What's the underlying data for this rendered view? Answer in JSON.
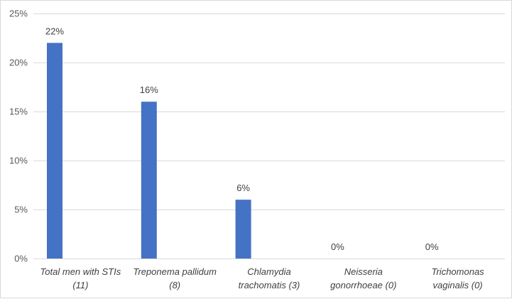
{
  "chart_data": {
    "type": "bar",
    "title": "",
    "xlabel": "",
    "ylabel": "",
    "categories": [
      [
        "Total men with STIs",
        "(11)"
      ],
      [
        "Treponema pallidum",
        "(8)"
      ],
      [
        "Chlamydia",
        "trachomatis (3)"
      ],
      [
        "Neisseria",
        "gonorrhoeae (0)"
      ],
      [
        "Trichomonas",
        "vaginalis (0)"
      ]
    ],
    "values": [
      22,
      16,
      6,
      0,
      0
    ],
    "data_labels": [
      "22%",
      "16%",
      "6%",
      "0%",
      "0%"
    ],
    "ylim": [
      0,
      25
    ],
    "yticks": [
      0,
      5,
      10,
      15,
      20,
      25
    ],
    "ytick_labels": [
      "0%",
      "5%",
      "10%",
      "15%",
      "20%",
      "25%"
    ],
    "grid": true,
    "legend": "none",
    "bar_color": "#4472c4",
    "grid_color": "#d9d9d9"
  }
}
